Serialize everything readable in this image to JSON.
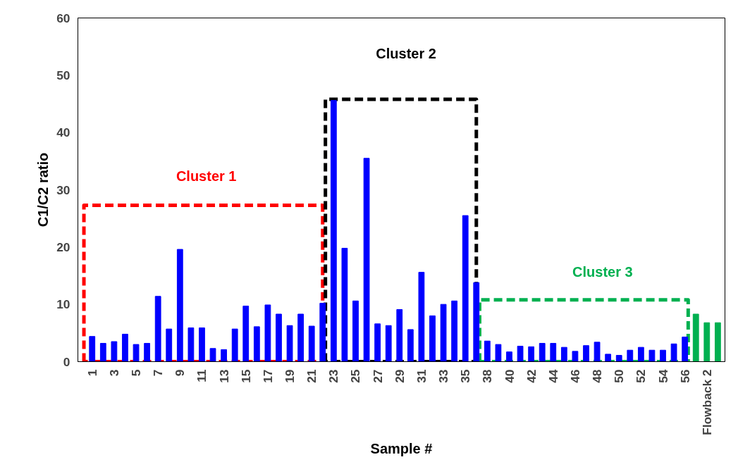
{
  "chart_data": {
    "type": "bar",
    "xlabel": "Sample #",
    "ylabel": "C1/C2 ratio",
    "categories": [
      "1",
      null,
      "3",
      null,
      "5",
      null,
      "7",
      null,
      "9",
      null,
      "11",
      null,
      "13",
      null,
      "15",
      null,
      "17",
      null,
      "19",
      null,
      "21",
      null,
      "23",
      null,
      "25",
      null,
      "27",
      null,
      "29",
      null,
      "31",
      null,
      "33",
      null,
      "35",
      null,
      "38",
      null,
      "40",
      null,
      "42",
      null,
      "44",
      null,
      "46",
      null,
      "48",
      null,
      "50",
      null,
      "52",
      null,
      "54",
      null,
      "56",
      null,
      "Flowback 2",
      null
    ],
    "values": [
      4.4,
      3.2,
      3.5,
      4.8,
      3.0,
      3.2,
      11.4,
      5.7,
      19.6,
      5.9,
      5.9,
      2.3,
      2.1,
      5.7,
      9.7,
      6.1,
      9.9,
      8.3,
      6.3,
      8.3,
      6.2,
      10.2,
      45.6,
      19.8,
      10.6,
      35.5,
      6.6,
      6.3,
      9.1,
      5.6,
      15.6,
      8.0,
      10.0,
      10.6,
      25.5,
      13.8,
      3.6,
      3.0,
      1.7,
      2.7,
      2.6,
      3.2,
      3.2,
      2.5,
      1.8,
      2.8,
      3.4,
      1.3,
      1.1,
      2.0,
      2.5,
      2.0,
      2.0,
      3.1,
      4.3,
      8.3,
      6.8,
      6.8
    ],
    "colors": [
      "#0000ff",
      "#0000ff",
      "#0000ff",
      "#0000ff",
      "#0000ff",
      "#0000ff",
      "#0000ff",
      "#0000ff",
      "#0000ff",
      "#0000ff",
      "#0000ff",
      "#0000ff",
      "#0000ff",
      "#0000ff",
      "#0000ff",
      "#0000ff",
      "#0000ff",
      "#0000ff",
      "#0000ff",
      "#0000ff",
      "#0000ff",
      "#0000ff",
      "#0000ff",
      "#0000ff",
      "#0000ff",
      "#0000ff",
      "#0000ff",
      "#0000ff",
      "#0000ff",
      "#0000ff",
      "#0000ff",
      "#0000ff",
      "#0000ff",
      "#0000ff",
      "#0000ff",
      "#0000ff",
      "#0000ff",
      "#0000ff",
      "#0000ff",
      "#0000ff",
      "#0000ff",
      "#0000ff",
      "#0000ff",
      "#0000ff",
      "#0000ff",
      "#0000ff",
      "#0000ff",
      "#0000ff",
      "#0000ff",
      "#0000ff",
      "#0000ff",
      "#0000ff",
      "#0000ff",
      "#0000ff",
      "#0000ff",
      "#00b050",
      "#00b050",
      "#00b050"
    ],
    "ylim": [
      0,
      60
    ],
    "yticks": [
      0,
      10,
      20,
      30,
      40,
      50,
      60
    ],
    "grid": false,
    "annotations": [
      "Cluster 1",
      "Cluster 2",
      "Cluster 3"
    ]
  }
}
